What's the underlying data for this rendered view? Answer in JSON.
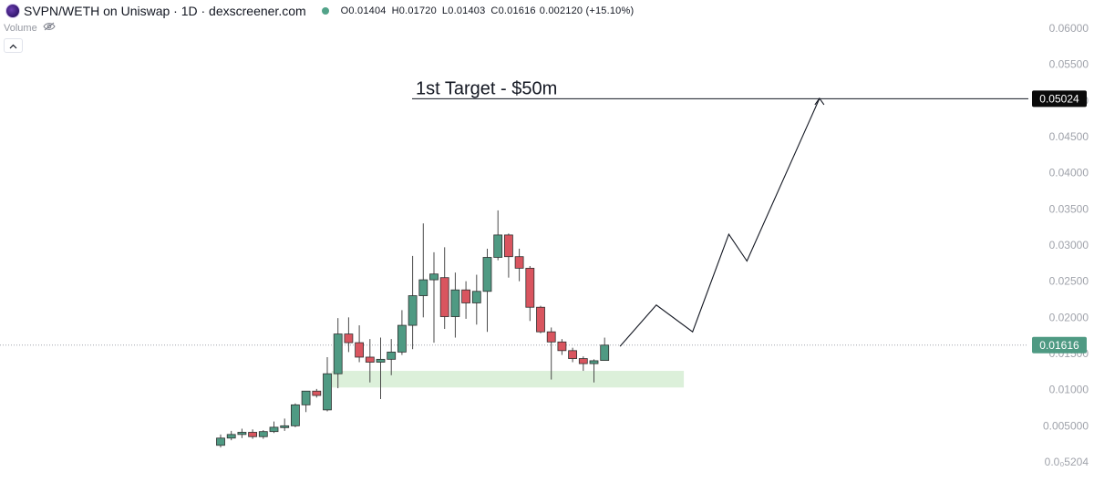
{
  "header": {
    "symbol_title": "SVPN/WETH on Uniswap · 1D · dexscreener.com",
    "ohlc": {
      "open_key": "O",
      "open": "0.01404",
      "high_key": "H",
      "high": "0.01720",
      "low_key": "L",
      "low": "0.01403",
      "close_key": "C",
      "close": "0.01616",
      "change": "0.002120 (+15.10%)"
    },
    "volume_label": "Volume",
    "logo_icon": "svpn-logo-icon",
    "eye_icon": "eye-crossed-icon",
    "collapse_icon": "chevron-up-icon"
  },
  "colors": {
    "up": "#4f9a83",
    "down": "#d9555f",
    "zone": "#dcf0da",
    "target_tag_bg": "#0b0b0b",
    "price_tag_bg": "#4f9a83",
    "axis_text": "#a0a3ab"
  },
  "chart_data": {
    "type": "candlestick",
    "y_axis": {
      "ticks": [
        0.0,
        0.005,
        0.01,
        0.015,
        0.02,
        0.025,
        0.03,
        0.035,
        0.04,
        0.045,
        0.05,
        0.055,
        0.06
      ],
      "tick_labels": [
        "0.0₀5204",
        "0.005000",
        "0.01000",
        "0.01500",
        "0.02000",
        "0.02500",
        "0.03000",
        "0.03500",
        "0.04000",
        "0.04500",
        "0.05000",
        "0.05500",
        "0.06000"
      ],
      "range": [
        0.0,
        0.06
      ]
    },
    "candles": [
      {
        "o": 0.0023,
        "h": 0.0038,
        "l": 0.002,
        "c": 0.0033
      },
      {
        "o": 0.0033,
        "h": 0.0043,
        "l": 0.003,
        "c": 0.0038
      },
      {
        "o": 0.0038,
        "h": 0.0046,
        "l": 0.0033,
        "c": 0.0041
      },
      {
        "o": 0.0041,
        "h": 0.0045,
        "l": 0.0032,
        "c": 0.0035
      },
      {
        "o": 0.0035,
        "h": 0.0044,
        "l": 0.0032,
        "c": 0.0042
      },
      {
        "o": 0.0042,
        "h": 0.0056,
        "l": 0.004,
        "c": 0.0048
      },
      {
        "o": 0.0048,
        "h": 0.006,
        "l": 0.0043,
        "c": 0.005
      },
      {
        "o": 0.005,
        "h": 0.0081,
        "l": 0.0048,
        "c": 0.0079
      },
      {
        "o": 0.0079,
        "h": 0.0098,
        "l": 0.0069,
        "c": 0.0098
      },
      {
        "o": 0.0098,
        "h": 0.0101,
        "l": 0.0089,
        "c": 0.0092
      },
      {
        "o": 0.0072,
        "h": 0.0145,
        "l": 0.007,
        "c": 0.0122
      },
      {
        "o": 0.0122,
        "h": 0.0199,
        "l": 0.0102,
        "c": 0.0177
      },
      {
        "o": 0.0177,
        "h": 0.02,
        "l": 0.0152,
        "c": 0.0165
      },
      {
        "o": 0.0165,
        "h": 0.0189,
        "l": 0.0138,
        "c": 0.0145
      },
      {
        "o": 0.0145,
        "h": 0.017,
        "l": 0.011,
        "c": 0.0138
      },
      {
        "o": 0.0138,
        "h": 0.0172,
        "l": 0.0087,
        "c": 0.0142
      },
      {
        "o": 0.0142,
        "h": 0.017,
        "l": 0.012,
        "c": 0.0152
      },
      {
        "o": 0.0152,
        "h": 0.021,
        "l": 0.0148,
        "c": 0.0189
      },
      {
        "o": 0.0189,
        "h": 0.0285,
        "l": 0.0156,
        "c": 0.023
      },
      {
        "o": 0.023,
        "h": 0.033,
        "l": 0.02,
        "c": 0.0252
      },
      {
        "o": 0.0252,
        "h": 0.029,
        "l": 0.0165,
        "c": 0.026
      },
      {
        "o": 0.0255,
        "h": 0.0297,
        "l": 0.0184,
        "c": 0.0201
      },
      {
        "o": 0.0201,
        "h": 0.0262,
        "l": 0.0172,
        "c": 0.0238
      },
      {
        "o": 0.0238,
        "h": 0.025,
        "l": 0.0198,
        "c": 0.022
      },
      {
        "o": 0.022,
        "h": 0.0259,
        "l": 0.019,
        "c": 0.0236
      },
      {
        "o": 0.0236,
        "h": 0.0295,
        "l": 0.018,
        "c": 0.0283
      },
      {
        "o": 0.0283,
        "h": 0.0348,
        "l": 0.0279,
        "c": 0.0314
      },
      {
        "o": 0.0314,
        "h": 0.0316,
        "l": 0.0255,
        "c": 0.0284
      },
      {
        "o": 0.0284,
        "h": 0.0295,
        "l": 0.025,
        "c": 0.0268
      },
      {
        "o": 0.0268,
        "h": 0.0271,
        "l": 0.0195,
        "c": 0.0214
      },
      {
        "o": 0.0214,
        "h": 0.0216,
        "l": 0.0178,
        "c": 0.018
      },
      {
        "o": 0.018,
        "h": 0.0186,
        "l": 0.0114,
        "c": 0.0166
      },
      {
        "o": 0.0166,
        "h": 0.017,
        "l": 0.0148,
        "c": 0.0154
      },
      {
        "o": 0.0154,
        "h": 0.0158,
        "l": 0.0138,
        "c": 0.0143
      },
      {
        "o": 0.0143,
        "h": 0.0146,
        "l": 0.0126,
        "c": 0.0136
      },
      {
        "o": 0.0136,
        "h": 0.0142,
        "l": 0.011,
        "c": 0.014
      },
      {
        "o": 0.01404,
        "h": 0.0172,
        "l": 0.01403,
        "c": 0.01616
      }
    ],
    "support_zone": {
      "y_low": 0.0103,
      "y_high": 0.0126
    },
    "target_line": {
      "value": 0.05024,
      "label": "1st Target - $50m",
      "tag": "0.05024"
    },
    "current_price": {
      "value": 0.01616,
      "tag": "0.01616"
    },
    "projection": [
      {
        "after_bars": 1,
        "y": 0.016
      },
      {
        "after_bars": 3,
        "y": 0.0217
      },
      {
        "after_bars": 5,
        "y": 0.018
      },
      {
        "after_bars": 7,
        "y": 0.0315
      },
      {
        "after_bars": 8,
        "y": 0.0278
      },
      {
        "after_bars": 12,
        "y": 0.0503
      }
    ]
  }
}
